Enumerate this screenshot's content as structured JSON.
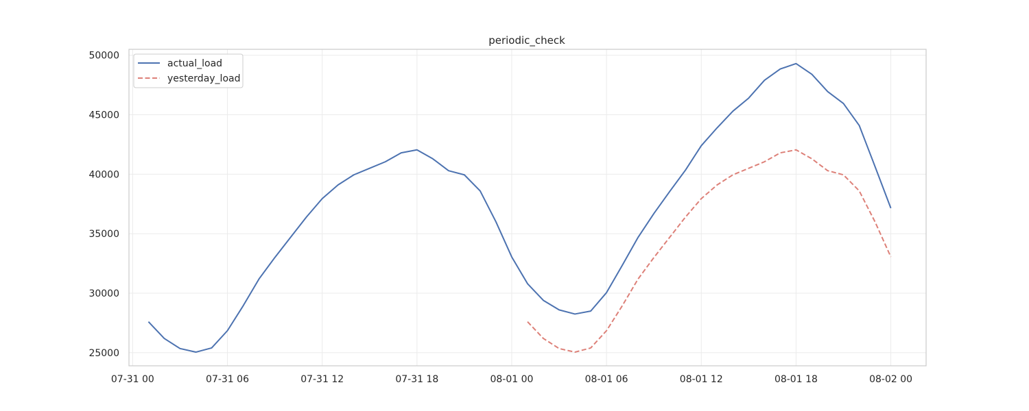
{
  "chart_data": {
    "type": "line",
    "title": "periodic_check",
    "xlabel": "",
    "ylabel": "",
    "x_range": [
      "2022-07-30T23:46",
      "2022-08-02T02:14"
    ],
    "ylim": [
      23900,
      50500
    ],
    "grid": true,
    "legend_position": "top-left",
    "x_ticks": [
      {
        "t": "2022-07-31T00:00",
        "label": "07-31 00"
      },
      {
        "t": "2022-07-31T06:00",
        "label": "07-31 06"
      },
      {
        "t": "2022-07-31T12:00",
        "label": "07-31 12"
      },
      {
        "t": "2022-07-31T18:00",
        "label": "07-31 18"
      },
      {
        "t": "2022-08-01T00:00",
        "label": "08-01 00"
      },
      {
        "t": "2022-08-01T06:00",
        "label": "08-01 06"
      },
      {
        "t": "2022-08-01T12:00",
        "label": "08-01 12"
      },
      {
        "t": "2022-08-01T18:00",
        "label": "08-01 18"
      },
      {
        "t": "2022-08-02T00:00",
        "label": "08-02 00"
      }
    ],
    "y_ticks": [
      {
        "v": 25000,
        "label": "25000"
      },
      {
        "v": 30000,
        "label": "30000"
      },
      {
        "v": 35000,
        "label": "35000"
      },
      {
        "v": 40000,
        "label": "40000"
      },
      {
        "v": 45000,
        "label": "45000"
      },
      {
        "v": 50000,
        "label": "50000"
      }
    ],
    "series": [
      {
        "name": "actual_load",
        "color": "#4c72b0",
        "dash": "solid",
        "x": [
          "2022-07-31T01:00",
          "2022-07-31T02:00",
          "2022-07-31T03:00",
          "2022-07-31T04:00",
          "2022-07-31T05:00",
          "2022-07-31T06:00",
          "2022-07-31T07:00",
          "2022-07-31T08:00",
          "2022-07-31T09:00",
          "2022-07-31T10:00",
          "2022-07-31T11:00",
          "2022-07-31T12:00",
          "2022-07-31T13:00",
          "2022-07-31T14:00",
          "2022-07-31T15:00",
          "2022-07-31T16:00",
          "2022-07-31T17:00",
          "2022-07-31T18:00",
          "2022-07-31T19:00",
          "2022-07-31T20:00",
          "2022-07-31T21:00",
          "2022-07-31T22:00",
          "2022-07-31T23:00",
          "2022-08-01T00:00",
          "2022-08-01T01:00",
          "2022-08-01T02:00",
          "2022-08-01T03:00",
          "2022-08-01T04:00",
          "2022-08-01T05:00",
          "2022-08-01T06:00",
          "2022-08-01T07:00",
          "2022-08-01T08:00",
          "2022-08-01T09:00",
          "2022-08-01T10:00",
          "2022-08-01T11:00",
          "2022-08-01T12:00",
          "2022-08-01T13:00",
          "2022-08-01T14:00",
          "2022-08-01T15:00",
          "2022-08-01T16:00",
          "2022-08-01T17:00",
          "2022-08-01T18:00",
          "2022-08-01T19:00",
          "2022-08-01T20:00",
          "2022-08-01T21:00",
          "2022-08-01T22:00",
          "2022-08-01T23:00",
          "2022-08-02T00:00"
        ],
        "values": [
          27600,
          26200,
          25350,
          25050,
          25400,
          26850,
          28950,
          31200,
          33000,
          34700,
          36400,
          37950,
          39100,
          39950,
          40500,
          41050,
          41800,
          42050,
          41300,
          40300,
          39950,
          38600,
          36000,
          33050,
          30800,
          29400,
          28600,
          28250,
          28500,
          30050,
          32350,
          34700,
          36700,
          38550,
          40350,
          42400,
          43900,
          45300,
          46400,
          47900,
          48850,
          49300,
          48400,
          46950,
          45950,
          44100,
          40650,
          37150
        ]
      },
      {
        "name": "yesterday_load",
        "color": "#dd8078",
        "dash": "dashed",
        "x": [
          "2022-08-01T01:00",
          "2022-08-01T02:00",
          "2022-08-01T03:00",
          "2022-08-01T04:00",
          "2022-08-01T05:00",
          "2022-08-01T06:00",
          "2022-08-01T07:00",
          "2022-08-01T08:00",
          "2022-08-01T09:00",
          "2022-08-01T10:00",
          "2022-08-01T11:00",
          "2022-08-01T12:00",
          "2022-08-01T13:00",
          "2022-08-01T14:00",
          "2022-08-01T15:00",
          "2022-08-01T16:00",
          "2022-08-01T17:00",
          "2022-08-01T18:00",
          "2022-08-01T19:00",
          "2022-08-01T20:00",
          "2022-08-01T21:00",
          "2022-08-01T22:00",
          "2022-08-01T23:00",
          "2022-08-02T00:00"
        ],
        "values": [
          27600,
          26200,
          25350,
          25050,
          25400,
          26850,
          28950,
          31200,
          33000,
          34700,
          36400,
          37950,
          39100,
          39950,
          40500,
          41050,
          41800,
          42050,
          41300,
          40300,
          39950,
          38600,
          36000,
          33050
        ]
      }
    ]
  }
}
